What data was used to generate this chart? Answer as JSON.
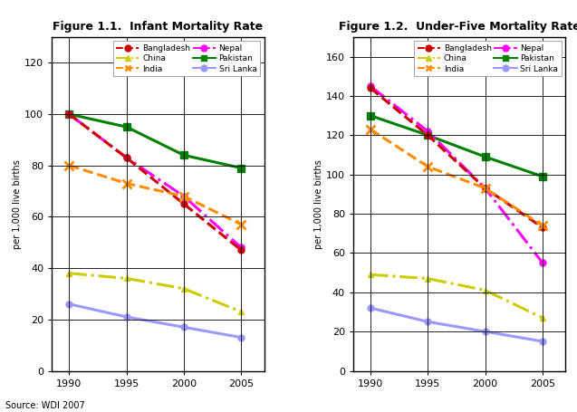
{
  "years": [
    1990,
    1995,
    2000,
    2005
  ],
  "fig1": {
    "title": "Figure 1.1.  Infant Mortality Rate",
    "ylabel": "per 1,000 live births",
    "ylim": [
      0,
      130
    ],
    "yticks": [
      0,
      20,
      40,
      60,
      80,
      100,
      120
    ],
    "series": {
      "Bangladesh": [
        100,
        83,
        65,
        47
      ],
      "India": [
        80,
        73,
        68,
        57
      ],
      "Pakistan": [
        100,
        95,
        84,
        79
      ],
      "China": [
        38,
        36,
        32,
        23
      ],
      "Nepal": [
        100,
        83,
        68,
        48
      ],
      "Sri Lanka": [
        26,
        21,
        17,
        13
      ]
    }
  },
  "fig2": {
    "title": "Figure 1.2.  Under-Five Mortality Rate",
    "ylabel": "per 1,000 live births",
    "ylim": [
      0,
      170
    ],
    "yticks": [
      0,
      20,
      40,
      60,
      80,
      100,
      120,
      140,
      160
    ],
    "series": {
      "Bangladesh": [
        144,
        120,
        93,
        73
      ],
      "India": [
        123,
        104,
        93,
        74
      ],
      "Pakistan": [
        130,
        120,
        109,
        99
      ],
      "China": [
        49,
        47,
        41,
        27
      ],
      "Nepal": [
        145,
        122,
        93,
        55
      ],
      "Sri Lanka": [
        32,
        25,
        20,
        15
      ]
    }
  },
  "styles": {
    "Bangladesh": {
      "color": "#cc0000",
      "linestyle": "--"
    },
    "India": {
      "color": "#ff8c00",
      "linestyle": "--"
    },
    "Pakistan": {
      "color": "#008000",
      "linestyle": "-"
    },
    "China": {
      "color": "#cccc00",
      "linestyle": "-."
    },
    "Nepal": {
      "color": "#ff00ff",
      "linestyle": "-."
    },
    "Sri Lanka": {
      "color": "#9999ff",
      "linestyle": "-"
    }
  },
  "legend_order_col1": [
    "Bangladesh",
    "India",
    "Pakistan"
  ],
  "legend_order_col2": [
    "China",
    "Nepal",
    "Sri Lanka"
  ],
  "background_color": "#ffffff",
  "plot_bg_color": "#ffffff",
  "grid_color": "#000000",
  "source_text": "Source: WDI 2007"
}
